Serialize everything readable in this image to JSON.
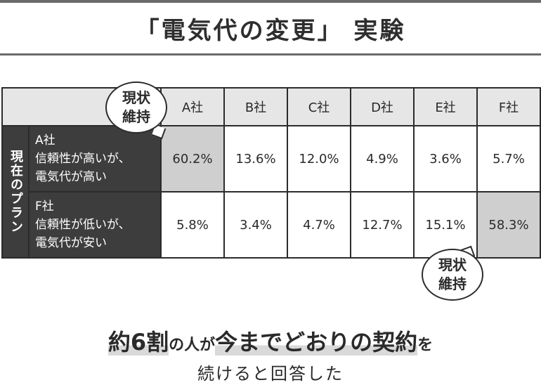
{
  "title": "「電気代の変更」 実験",
  "bubble_label": [
    "現状",
    "維持"
  ],
  "table": {
    "columns": [
      "A社",
      "B社",
      "C社",
      "D社",
      "E社",
      "F社"
    ],
    "side_label": "現在のプラン",
    "rows": [
      {
        "label_lines": [
          "A社",
          "信頼性が高いが、",
          "電気代が高い"
        ],
        "values": [
          "60.2%",
          "13.6%",
          "12.0%",
          "4.9%",
          "3.6%",
          "5.7%"
        ],
        "highlight_index": 0
      },
      {
        "label_lines": [
          "F社",
          "信頼性が低いが、",
          "電気代が安い"
        ],
        "values": [
          "5.8%",
          "3.4%",
          "4.7%",
          "12.7%",
          "15.1%",
          "58.3%"
        ],
        "highlight_index": 5
      }
    ]
  },
  "summary": {
    "line1_parts": [
      "約6割",
      "の人が",
      "今までどおりの契約",
      "を"
    ],
    "line2": "続けると回答した"
  },
  "colors": {
    "dark": "#3d3d3d",
    "highlight": "#cfcfcf",
    "header": "#e6e6e6"
  }
}
